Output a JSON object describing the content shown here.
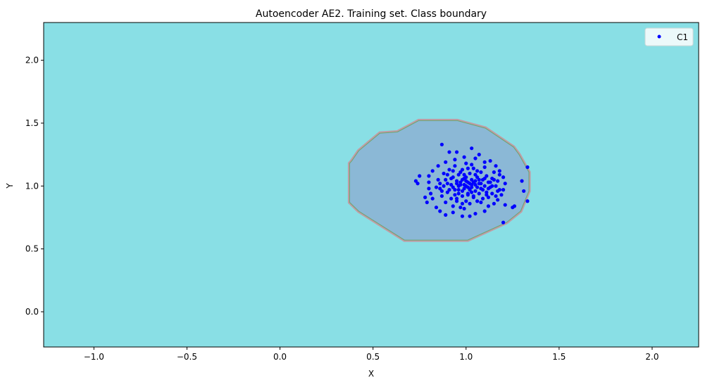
{
  "chart_data": {
    "type": "scatter",
    "title": "Autoencoder AE2. Training set. Class boundary",
    "xlabel": "X",
    "ylabel": "Y",
    "xlim": [
      -1.27,
      2.25
    ],
    "ylim": [
      -0.28,
      2.3
    ],
    "xticks": [
      -1.0,
      -0.5,
      0.0,
      0.5,
      1.0,
      1.5,
      2.0
    ],
    "xtick_labels": [
      "−1.0",
      "−0.5",
      "0.0",
      "0.5",
      "1.0",
      "1.5",
      "2.0"
    ],
    "yticks": [
      0.0,
      0.5,
      1.0,
      1.5,
      2.0
    ],
    "ytick_labels": [
      "0.0",
      "0.5",
      "1.0",
      "1.5",
      "2.0"
    ],
    "grid": false,
    "legend": {
      "placement": "top-right",
      "entries": [
        "C1"
      ]
    },
    "colors": {
      "outside_region": "#89dfe5",
      "inside_region": "#8bb8d6",
      "boundary": "#d08a94",
      "boundary_inner": "#6aa56f",
      "points": "#0000ff"
    },
    "boundary_polygon": [
      [
        0.374,
        1.18
      ],
      [
        0.374,
        0.87
      ],
      [
        0.423,
        0.8
      ],
      [
        0.669,
        0.57
      ],
      [
        1.009,
        0.57
      ],
      [
        1.217,
        0.71
      ],
      [
        1.293,
        0.8
      ],
      [
        1.338,
        0.96
      ],
      [
        1.338,
        1.11
      ],
      [
        1.285,
        1.25
      ],
      [
        1.255,
        1.31
      ],
      [
        1.104,
        1.46
      ],
      [
        0.953,
        1.52
      ],
      [
        0.745,
        1.52
      ],
      [
        0.631,
        1.43
      ],
      [
        0.537,
        1.42
      ],
      [
        0.423,
        1.28
      ],
      [
        0.386,
        1.2
      ]
    ],
    "series": [
      {
        "name": "C1",
        "points": [
          [
            0.87,
            1.33
          ],
          [
            1.2,
            0.71
          ],
          [
            0.73,
            1.04
          ],
          [
            0.74,
            1.02
          ],
          [
            0.75,
            1.08
          ],
          [
            1.33,
            0.88
          ],
          [
            1.33,
            1.15
          ],
          [
            1.3,
            1.04
          ],
          [
            1.31,
            0.96
          ],
          [
            1.26,
            0.84
          ],
          [
            1.25,
            0.83
          ],
          [
            1.21,
            0.85
          ],
          [
            0.91,
            1.27
          ],
          [
            0.95,
            1.27
          ],
          [
            1.03,
            1.3
          ],
          [
            1.07,
            1.25
          ],
          [
            1.13,
            1.2
          ],
          [
            0.78,
            0.91
          ],
          [
            0.79,
            0.87
          ],
          [
            0.81,
            0.94
          ],
          [
            0.82,
            0.9
          ],
          [
            0.84,
            0.83
          ],
          [
            0.86,
            0.8
          ],
          [
            0.89,
            0.77
          ],
          [
            0.93,
            0.79
          ],
          [
            0.98,
            0.76
          ],
          [
            1.02,
            0.76
          ],
          [
            1.05,
            0.78
          ],
          [
            1.1,
            0.8
          ],
          [
            1.12,
            0.84
          ],
          [
            1.15,
            0.86
          ],
          [
            1.17,
            0.89
          ],
          [
            1.19,
            0.93
          ],
          [
            1.2,
            0.97
          ],
          [
            1.21,
            1.02
          ],
          [
            1.2,
            1.07
          ],
          [
            1.18,
            1.12
          ],
          [
            1.16,
            1.16
          ],
          [
            1.1,
            1.19
          ],
          [
            1.05,
            1.22
          ],
          [
            0.99,
            1.23
          ],
          [
            0.94,
            1.21
          ],
          [
            0.89,
            1.19
          ],
          [
            0.85,
            1.16
          ],
          [
            0.82,
            1.12
          ],
          [
            0.8,
            1.08
          ],
          [
            0.8,
            1.03
          ],
          [
            0.8,
            0.98
          ],
          [
            0.85,
            1.05
          ],
          [
            0.86,
            0.98
          ],
          [
            0.87,
            0.92
          ],
          [
            0.88,
            1.1
          ],
          [
            0.89,
            0.87
          ],
          [
            0.9,
            1.02
          ],
          [
            0.9,
            0.95
          ],
          [
            0.91,
            1.13
          ],
          [
            0.92,
            0.9
          ],
          [
            0.92,
            1.06
          ],
          [
            0.93,
            0.99
          ],
          [
            0.93,
            0.84
          ],
          [
            0.94,
            1.16
          ],
          [
            0.94,
            0.93
          ],
          [
            0.95,
            1.04
          ],
          [
            0.95,
            0.88
          ],
          [
            0.96,
            1.09
          ],
          [
            0.96,
            0.97
          ],
          [
            0.97,
            1.01
          ],
          [
            0.97,
            0.83
          ],
          [
            0.98,
            1.13
          ],
          [
            0.98,
            0.92
          ],
          [
            0.99,
            1.06
          ],
          [
            0.99,
            0.98
          ],
          [
            1.0,
            1.0
          ],
          [
            1.0,
            0.88
          ],
          [
            1.0,
            1.18
          ],
          [
            1.01,
            1.03
          ],
          [
            1.01,
            0.94
          ],
          [
            1.02,
            1.1
          ],
          [
            1.02,
            0.86
          ],
          [
            1.03,
            0.99
          ],
          [
            1.03,
            1.05
          ],
          [
            1.04,
            0.91
          ],
          [
            1.04,
            1.14
          ],
          [
            1.05,
            1.01
          ],
          [
            1.05,
            0.96
          ],
          [
            1.06,
            1.07
          ],
          [
            1.06,
            0.88
          ],
          [
            1.07,
            1.02
          ],
          [
            1.07,
            0.94
          ],
          [
            1.08,
            1.11
          ],
          [
            1.08,
            0.98
          ],
          [
            1.09,
            1.05
          ],
          [
            1.09,
            0.9
          ],
          [
            1.1,
            1.0
          ],
          [
            1.1,
            1.15
          ],
          [
            1.11,
            0.95
          ],
          [
            1.11,
            1.08
          ],
          [
            1.12,
            1.03
          ],
          [
            1.12,
            0.91
          ],
          [
            1.13,
            0.99
          ],
          [
            1.14,
            1.06
          ],
          [
            1.14,
            0.94
          ],
          [
            1.15,
            1.11
          ],
          [
            1.16,
            1.0
          ],
          [
            1.16,
            0.92
          ],
          [
            1.17,
            1.04
          ],
          [
            1.18,
            0.97
          ],
          [
            1.18,
            1.09
          ],
          [
            0.97,
            1.03
          ],
          [
            0.98,
            1.05
          ],
          [
            0.99,
            1.01
          ],
          [
            1.0,
            1.04
          ],
          [
            1.01,
            0.99
          ],
          [
            1.02,
            1.02
          ],
          [
            1.03,
            1.01
          ],
          [
            1.04,
            1.03
          ],
          [
            0.96,
            1.0
          ],
          [
            1.05,
            1.04
          ],
          [
            0.98,
            0.96
          ],
          [
            1.02,
            0.97
          ],
          [
            1.0,
            1.07
          ],
          [
            1.01,
            0.93
          ],
          [
            0.95,
            1.02
          ],
          [
            1.06,
            0.99
          ],
          [
            0.99,
            1.09
          ],
          [
            1.03,
            0.95
          ],
          [
            0.94,
            0.97
          ],
          [
            1.07,
            1.05
          ],
          [
            0.92,
            1.01
          ],
          [
            1.08,
            1.02
          ],
          [
            0.97,
            1.11
          ],
          [
            1.04,
            0.92
          ],
          [
            0.91,
            0.97
          ],
          [
            1.09,
            0.97
          ],
          [
            0.96,
            0.94
          ],
          [
            1.05,
            1.09
          ],
          [
            0.93,
            1.07
          ],
          [
            1.1,
            1.06
          ],
          [
            0.88,
            1.0
          ],
          [
            1.12,
            0.98
          ],
          [
            0.89,
            1.05
          ],
          [
            1.13,
            1.03
          ],
          [
            0.87,
            0.96
          ],
          [
            1.14,
            1.0
          ],
          [
            0.98,
            0.86
          ],
          [
            1.01,
            1.14
          ],
          [
            0.95,
            0.9
          ],
          [
            1.06,
            1.12
          ],
          [
            0.9,
            1.09
          ],
          [
            1.11,
            0.93
          ],
          [
            0.86,
            1.02
          ],
          [
            1.15,
            1.05
          ],
          [
            0.99,
            0.82
          ],
          [
            1.03,
            1.17
          ],
          [
            0.93,
            1.12
          ],
          [
            1.08,
            0.87
          ],
          [
            0.84,
            0.99
          ],
          [
            1.17,
            0.96
          ]
        ]
      }
    ]
  }
}
